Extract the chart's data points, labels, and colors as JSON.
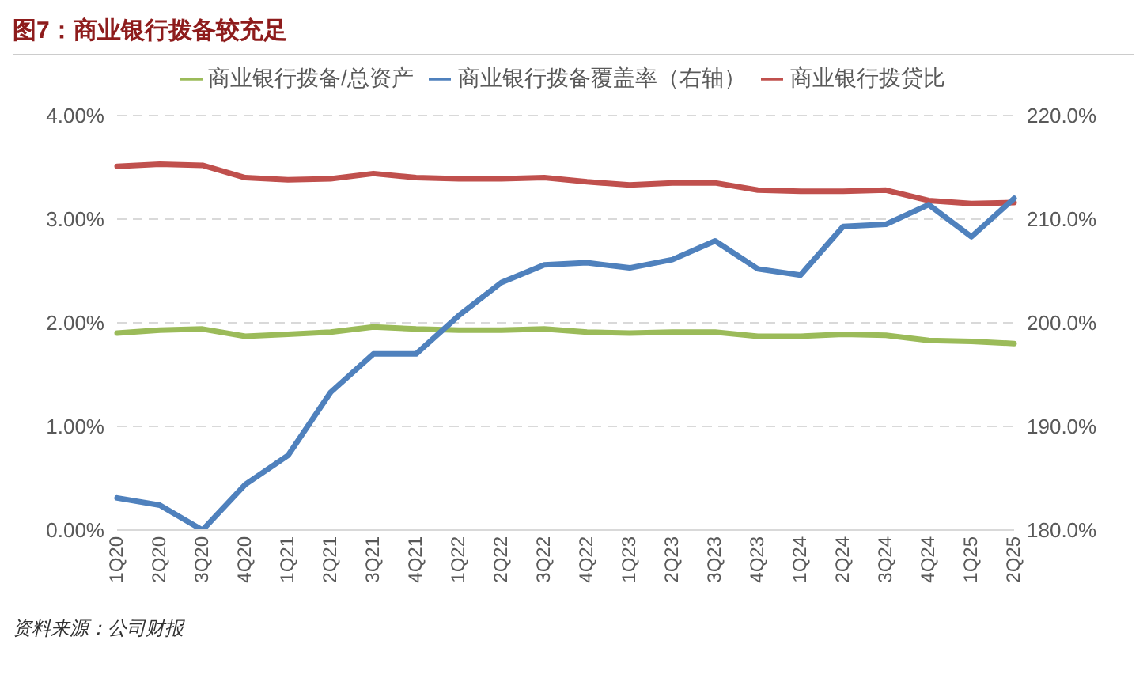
{
  "chart_data": {
    "type": "line",
    "title": "图7：商业银行拨备较充足",
    "annotations": [
      "资料来源：公司财报"
    ],
    "categories": [
      "1Q20",
      "2Q20",
      "3Q20",
      "4Q20",
      "1Q21",
      "2Q21",
      "3Q21",
      "4Q21",
      "1Q22",
      "2Q22",
      "3Q22",
      "4Q22",
      "1Q23",
      "2Q23",
      "3Q23",
      "4Q23",
      "1Q24",
      "2Q24",
      "3Q24",
      "4Q24",
      "1Q25",
      "2Q25"
    ],
    "series": [
      {
        "name": "商业银行拨贷比",
        "color": "#c0504d",
        "values": [
          3.51,
          3.53,
          3.52,
          3.4,
          3.38,
          3.39,
          3.44,
          3.4,
          3.39,
          3.39,
          3.4,
          3.36,
          3.33,
          3.35,
          3.35,
          3.28,
          3.27,
          3.27,
          3.28,
          3.18,
          3.15,
          3.16
        ]
      },
      {
        "name": "商业银行拨备/总资产",
        "color": "#9bbb59",
        "values": [
          1.9,
          1.93,
          1.94,
          1.87,
          1.89,
          1.91,
          1.96,
          1.94,
          1.93,
          1.93,
          1.94,
          1.91,
          1.9,
          1.91,
          1.91,
          1.87,
          1.87,
          1.89,
          1.88,
          1.83,
          1.82,
          1.8
        ]
      },
      {
        "name": "商业银行拨备覆盖率（右轴）",
        "color": "#4f81bd",
        "axis": "y2",
        "values": [
          183.1,
          182.4,
          180.0,
          184.4,
          187.2,
          193.3,
          197.0,
          197.0,
          200.7,
          203.9,
          205.6,
          205.8,
          205.3,
          206.1,
          207.9,
          205.2,
          204.6,
          209.3,
          209.5,
          211.4,
          208.3,
          212.0
        ]
      }
    ],
    "ylim": [
      0,
      4
    ],
    "yticks": [
      {
        "value": 0,
        "label": "0.00%"
      },
      {
        "value": 1,
        "label": "1.00%"
      },
      {
        "value": 2,
        "label": "2.00%"
      },
      {
        "value": 3,
        "label": "3.00%"
      },
      {
        "value": 4,
        "label": "4.00%"
      }
    ],
    "y2lim": [
      180,
      220
    ],
    "y2ticks": [
      {
        "value": 180,
        "label": "180.0%"
      },
      {
        "value": 190,
        "label": "190.0%"
      },
      {
        "value": 200,
        "label": "200.0%"
      },
      {
        "value": 210,
        "label": "210.0%"
      },
      {
        "value": 220,
        "label": "220.0%"
      }
    ],
    "grid": "y",
    "legend": "top",
    "marker": "none",
    "line_style": "solid"
  }
}
